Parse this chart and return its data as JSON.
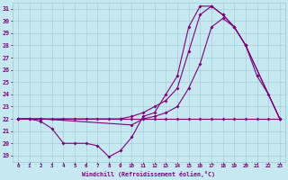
{
  "xlabel": "Windchill (Refroidissement éolien,°C)",
  "xlim": [
    -0.5,
    23.5
  ],
  "ylim": [
    18.5,
    31.5
  ],
  "yticks": [
    19,
    20,
    21,
    22,
    23,
    24,
    25,
    26,
    27,
    28,
    29,
    30,
    31
  ],
  "xticks": [
    0,
    1,
    2,
    3,
    4,
    5,
    6,
    7,
    8,
    9,
    10,
    11,
    12,
    13,
    14,
    15,
    16,
    17,
    18,
    19,
    20,
    21,
    22,
    23
  ],
  "background_color": "#c6e8f0",
  "grid_color": "#9dc8d4",
  "line_color": "#800080",
  "line1_x": [
    0,
    1,
    2,
    3,
    4,
    5,
    6,
    7,
    8,
    9,
    10,
    11,
    12,
    13,
    14,
    15,
    16,
    17,
    18,
    19,
    20,
    21,
    22,
    23
  ],
  "line1_y": [
    22.0,
    22.0,
    22.0,
    22.0,
    22.0,
    22.0,
    22.0,
    22.0,
    22.0,
    22.0,
    22.0,
    22.0,
    22.0,
    22.0,
    22.0,
    22.0,
    22.0,
    22.0,
    22.0,
    22.0,
    22.0,
    22.0,
    22.0,
    22.0
  ],
  "line2_x": [
    0,
    1,
    2,
    3,
    4,
    5,
    6,
    7,
    8,
    9,
    10,
    11,
    12,
    13,
    14,
    15,
    16,
    17,
    18,
    19,
    20,
    21,
    22,
    23
  ],
  "line2_y": [
    22.0,
    22.0,
    21.8,
    21.2,
    20.0,
    20.0,
    20.0,
    19.8,
    18.9,
    19.4,
    20.5,
    22.2,
    22.5,
    24.0,
    25.5,
    29.5,
    31.2,
    31.2,
    30.5,
    29.5,
    28.0,
    25.5,
    24.0,
    22.0
  ],
  "line3_x": [
    0,
    2,
    9,
    10,
    11,
    12,
    13,
    14,
    15,
    16,
    17,
    18,
    19,
    20,
    23
  ],
  "line3_y": [
    22.0,
    22.0,
    22.0,
    22.2,
    22.5,
    23.0,
    23.5,
    24.5,
    27.5,
    30.5,
    31.2,
    30.5,
    29.5,
    28.0,
    22.0
  ],
  "line4_x": [
    0,
    2,
    10,
    11,
    12,
    13,
    14,
    15,
    16,
    17,
    18,
    19,
    20,
    23
  ],
  "line4_y": [
    22.0,
    22.0,
    21.5,
    22.0,
    22.2,
    22.5,
    23.0,
    24.5,
    26.5,
    29.5,
    30.2,
    29.5,
    28.0,
    22.0
  ]
}
